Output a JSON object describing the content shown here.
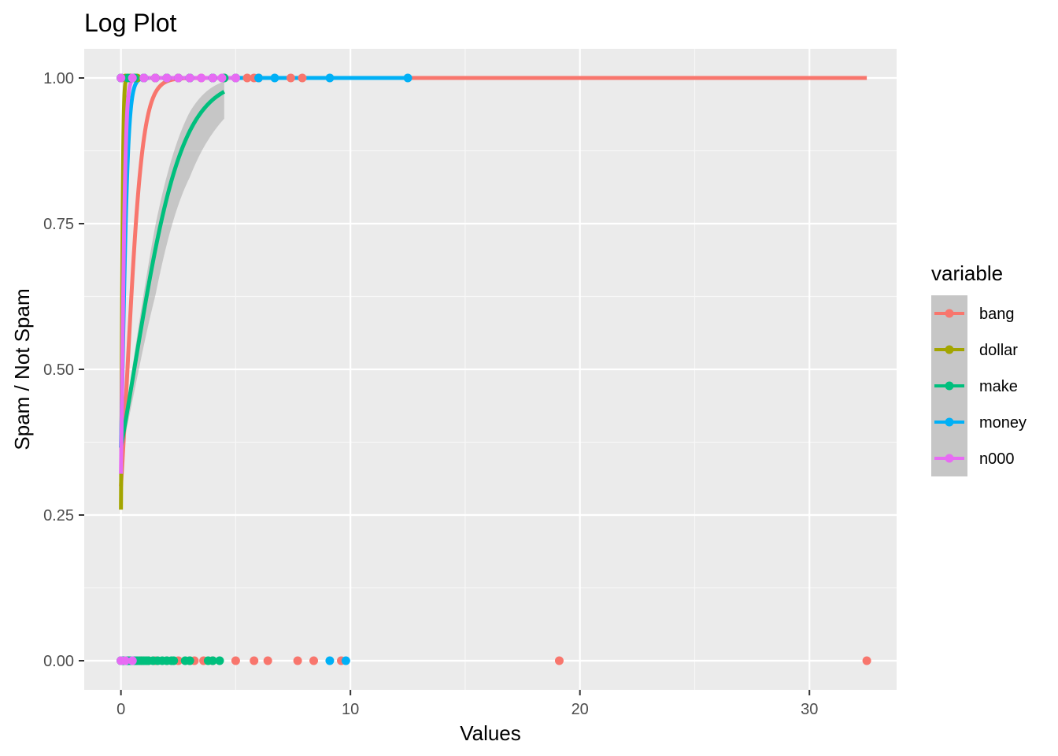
{
  "chart_data": {
    "type": "scatter",
    "title": "Log Plot",
    "xlabel": "Values",
    "ylabel": "Spam / Not Spam",
    "xlim": [
      -1.6,
      33.8
    ],
    "ylim": [
      -0.05,
      1.05
    ],
    "x_ticks": [
      0,
      10,
      20,
      30
    ],
    "x_tick_labels": [
      "0",
      "10",
      "20",
      "30"
    ],
    "y_ticks": [
      0,
      0.25,
      0.5,
      0.75,
      1
    ],
    "y_tick_labels": [
      "0.00",
      "0.25",
      "0.50",
      "0.75",
      "1.00"
    ],
    "grid": true,
    "legend": {
      "title": "variable",
      "position": "right"
    },
    "colors": {
      "bang": "#F8766D",
      "dollar": "#A3A500",
      "make": "#00BF7D",
      "money": "#00B0F6",
      "n000": "#E76BF3"
    },
    "series": [
      {
        "name": "bang",
        "color": "#F8766D",
        "points": [
          [
            0,
            0
          ],
          [
            0.3,
            0
          ],
          [
            0.6,
            0
          ],
          [
            0.9,
            0
          ],
          [
            1.2,
            0
          ],
          [
            1.5,
            0
          ],
          [
            2.0,
            0
          ],
          [
            2.5,
            0
          ],
          [
            3.0,
            0
          ],
          [
            3.2,
            0
          ],
          [
            3.6,
            0
          ],
          [
            4.0,
            0
          ],
          [
            5.0,
            0
          ],
          [
            5.8,
            0
          ],
          [
            6.4,
            0
          ],
          [
            7.7,
            0
          ],
          [
            8.4,
            0
          ],
          [
            9.6,
            0
          ],
          [
            19.1,
            0
          ],
          [
            32.5,
            0
          ],
          [
            0,
            1
          ],
          [
            0.5,
            1
          ],
          [
            1.0,
            1
          ],
          [
            1.5,
            1
          ],
          [
            2.0,
            1
          ],
          [
            2.5,
            1
          ],
          [
            3.0,
            1
          ],
          [
            3.5,
            1
          ],
          [
            4.0,
            1
          ],
          [
            4.5,
            1
          ],
          [
            5.5,
            1
          ],
          [
            5.8,
            1
          ],
          [
            6.0,
            1
          ],
          [
            7.4,
            1
          ],
          [
            7.9,
            1
          ]
        ],
        "fit": {
          "intercept": -0.85,
          "slope": 3.0,
          "x_max": 32.5
        }
      },
      {
        "name": "dollar",
        "color": "#A3A500",
        "points": [
          [
            0,
            0
          ],
          [
            0.1,
            0
          ],
          [
            0.2,
            0
          ],
          [
            0.3,
            0
          ],
          [
            0.5,
            0
          ],
          [
            0,
            1
          ],
          [
            0.2,
            1
          ],
          [
            0.4,
            1
          ],
          [
            0.7,
            1
          ],
          [
            1.0,
            1
          ],
          [
            1.5,
            1
          ],
          [
            2.0,
            1
          ],
          [
            3.0,
            1
          ],
          [
            4.0,
            1
          ],
          [
            5.0,
            1
          ]
        ],
        "fit": {
          "intercept": -1.05,
          "slope": 30.0,
          "x_max": 5.8
        }
      },
      {
        "name": "make",
        "color": "#00BF7D",
        "points": [
          [
            0,
            0
          ],
          [
            0.1,
            0
          ],
          [
            0.2,
            0
          ],
          [
            0.3,
            0
          ],
          [
            0.4,
            0
          ],
          [
            0.5,
            0
          ],
          [
            0.6,
            0
          ],
          [
            0.7,
            0
          ],
          [
            0.8,
            0
          ],
          [
            0.9,
            0
          ],
          [
            1.0,
            0
          ],
          [
            1.1,
            0
          ],
          [
            1.2,
            0
          ],
          [
            1.4,
            0
          ],
          [
            1.6,
            0
          ],
          [
            1.8,
            0
          ],
          [
            2.0,
            0
          ],
          [
            2.2,
            0
          ],
          [
            2.3,
            0
          ],
          [
            2.8,
            0
          ],
          [
            3.0,
            0
          ],
          [
            3.8,
            0
          ],
          [
            4.0,
            0
          ],
          [
            4.3,
            0
          ],
          [
            0,
            1
          ],
          [
            0.3,
            1
          ],
          [
            0.6,
            1
          ],
          [
            1.0,
            1
          ],
          [
            1.5,
            1
          ],
          [
            2.0,
            1
          ],
          [
            2.5,
            1
          ],
          [
            3.0,
            1
          ],
          [
            4.0,
            1
          ],
          [
            4.5,
            1
          ]
        ],
        "fit": {
          "intercept": -0.55,
          "slope": 0.95,
          "x_max": 4.5
        },
        "ribbon": true
      },
      {
        "name": "money",
        "color": "#00B0F6",
        "points": [
          [
            0,
            0
          ],
          [
            0.2,
            0
          ],
          [
            0.5,
            0
          ],
          [
            9.1,
            0
          ],
          [
            9.8,
            0
          ],
          [
            0,
            1
          ],
          [
            0.5,
            1
          ],
          [
            1.0,
            1
          ],
          [
            2.0,
            1
          ],
          [
            3.0,
            1
          ],
          [
            4.0,
            1
          ],
          [
            5.0,
            1
          ],
          [
            6.0,
            1
          ],
          [
            6.7,
            1
          ],
          [
            9.1,
            1
          ],
          [
            12.5,
            1
          ]
        ],
        "fit": {
          "intercept": -0.55,
          "slope": 8.0,
          "x_max": 12.5
        }
      },
      {
        "name": "n000",
        "color": "#E76BF3",
        "points": [
          [
            0,
            0
          ],
          [
            0.2,
            0
          ],
          [
            0.5,
            0
          ],
          [
            0,
            1
          ],
          [
            0.5,
            1
          ],
          [
            1.0,
            1
          ],
          [
            1.5,
            1
          ],
          [
            2.0,
            1
          ],
          [
            2.5,
            1
          ],
          [
            3.0,
            1
          ],
          [
            3.5,
            1
          ],
          [
            4.0,
            1
          ],
          [
            4.4,
            1
          ],
          [
            5.0,
            1
          ]
        ],
        "fit": {
          "intercept": -0.75,
          "slope": 13.0,
          "x_max": 5.0
        }
      }
    ]
  }
}
